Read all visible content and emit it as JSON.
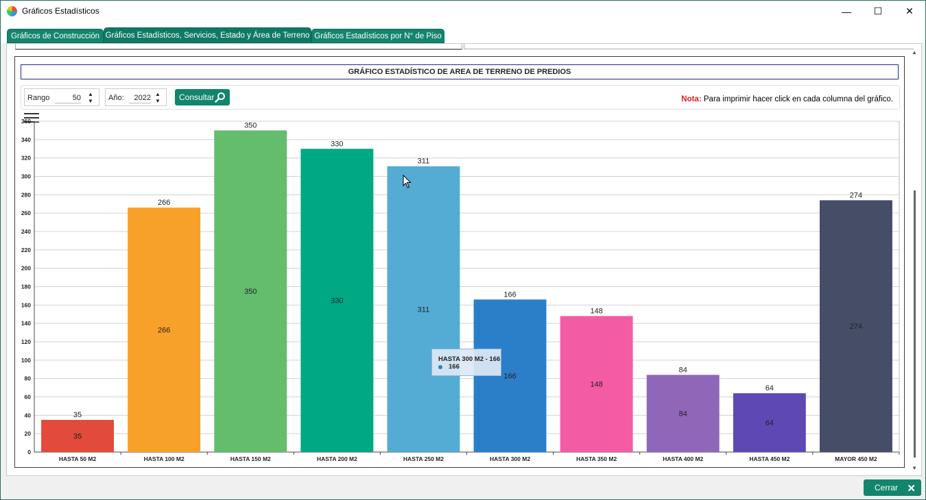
{
  "window": {
    "title": "Gráficos Estadísticos",
    "minimize_label": "—",
    "maximize_label": "☐",
    "close_label": "✕"
  },
  "tabs": [
    {
      "label": "Gráficos de Construcción",
      "active": false
    },
    {
      "label": "Gráficos Estadísticos, Servicios, Estado y Área de Terreno",
      "active": true
    },
    {
      "label": "Gráficos Estadísticos por N° de Piso",
      "active": false
    }
  ],
  "controls": {
    "rango_label": "Rango",
    "rango_value": "50",
    "anio_label": "Año:",
    "anio_value": "2022",
    "consultar_label": "Consultar",
    "nota_label": "Nota:",
    "nota_text": "Para imprimir hacer click en cada columna del gráfico."
  },
  "tooltip": {
    "title": "HASTA 300 M2 - 166",
    "value": "166"
  },
  "footer": {
    "cerrar_label": "Cerrar"
  },
  "chart_data": {
    "type": "bar",
    "title": "GRÁFICO ESTADÍSTICO DE AREA DE TERRENO DE PREDIOS",
    "xlabel": "",
    "ylabel": "",
    "categories": [
      "HASTA 50 M2",
      "HASTA 100 M2",
      "HASTA 150 M2",
      "HASTA 200 M2",
      "HASTA 250 M2",
      "HASTA 300 M2",
      "HASTA 350 M2",
      "HASTA 400 M2",
      "HASTA 450 M2",
      "MAYOR 450 M2"
    ],
    "values": [
      35,
      266,
      350,
      330,
      311,
      166,
      148,
      84,
      64,
      274
    ],
    "colors": [
      "#e24a3b",
      "#f8a12a",
      "#63bd6d",
      "#00a884",
      "#54abd4",
      "#2b7fc8",
      "#f45ba5",
      "#9067b8",
      "#5e49b4",
      "#454e66"
    ],
    "ylim": [
      0,
      360
    ],
    "yticks": [
      0,
      20,
      40,
      60,
      80,
      100,
      120,
      140,
      160,
      180,
      200,
      220,
      240,
      260,
      280,
      300,
      320,
      340,
      360
    ],
    "grid": true,
    "legend": "none"
  }
}
